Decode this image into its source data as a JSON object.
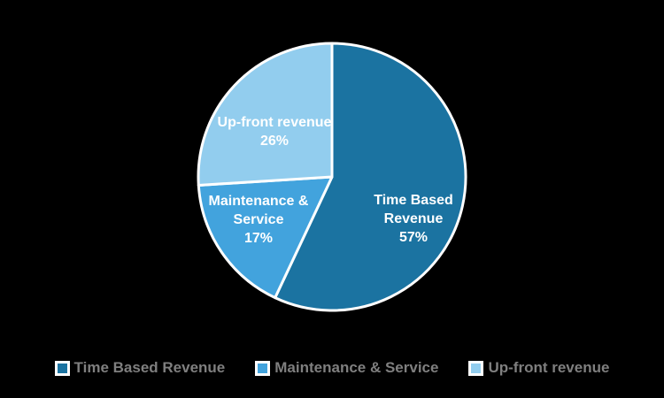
{
  "background_color": "#000000",
  "chart_data": {
    "type": "pie",
    "categories": [
      "Time Based Revenue",
      "Maintenance & Service",
      "Up-front revenue"
    ],
    "values": [
      57,
      17,
      26
    ],
    "unit": "%",
    "colors": [
      "#1b73a1",
      "#42a3dd",
      "#92cdee"
    ],
    "slice_border_color": "#ffffff",
    "start_angle_deg": 0,
    "direction": "clockwise",
    "label_color": "#ffffff",
    "data_labels": [
      {
        "lines": [
          "Time Based",
          "Revenue",
          "57%"
        ]
      },
      {
        "lines": [
          "Maintenance &",
          "Service",
          "17%"
        ]
      },
      {
        "lines": [
          "Up-front revenue",
          "26%"
        ]
      }
    ],
    "legend_position": "bottom",
    "legend": [
      {
        "label": "Time Based Revenue",
        "color": "#1b73a1"
      },
      {
        "label": "Maintenance & Service",
        "color": "#42a3dd"
      },
      {
        "label": "Up-front revenue",
        "color": "#92cdee"
      }
    ]
  }
}
